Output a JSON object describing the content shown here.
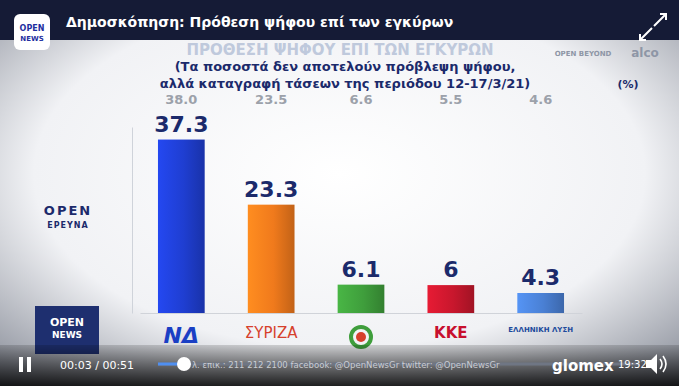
{
  "chart_data": {
    "type": "bar",
    "title": "ΠΡΟΘΕΣΗ ΨΗΦΟΥ ΕΠΙ ΤΩΝ ΕΓΚΥΡΩΝ",
    "subtitle": [
      "(Τα ποσοστά δεν αποτελούν πρόβλεψη ψήφου,",
      "αλλά καταγραφή τάσεων της περιόδου 12-17/3/21)"
    ],
    "ylabel": "(%)",
    "categories": [
      "ΝΔ",
      "ΣΥΡΙΖΑ",
      null,
      "ΚΚΕ",
      "ΕΛΛΗΝΙΚΗ ΛΥΣΗ"
    ],
    "values": [
      37.3,
      23.3,
      6.1,
      6,
      4.3
    ],
    "previous_values": [
      38,
      23.5,
      6.6,
      5.5,
      4.6
    ],
    "previous_value_labels": [
      "38.0",
      "23.5",
      "6.6",
      "5.5",
      "4.6"
    ],
    "colors": [
      "#1f3ed1",
      "#f07a1c",
      "#3f9e3c",
      "#c8172d",
      "#4a80d4"
    ],
    "ylim": [
      0,
      40
    ],
    "data_labels": true,
    "tick_labels": "x",
    "grid": false
  },
  "overlay": {
    "header": "Δημοσκόπηση: Πρόθεση ψήφου επί των εγκύρων",
    "channel_logo": [
      "OPEN",
      "NEWS"
    ],
    "research_logo": [
      "OPEN",
      "ΕΡΕΥΝΑ"
    ],
    "partner_logos": [
      "OPEN BEYOND",
      "alco"
    ],
    "time": "00:03 / 00:51",
    "ticker": "λ. επικ.: 211 212 2100 facebook: @OpenNewsGr twitter: @OpenNewsGr",
    "player_brand": "glomex",
    "clock": "19:32"
  }
}
